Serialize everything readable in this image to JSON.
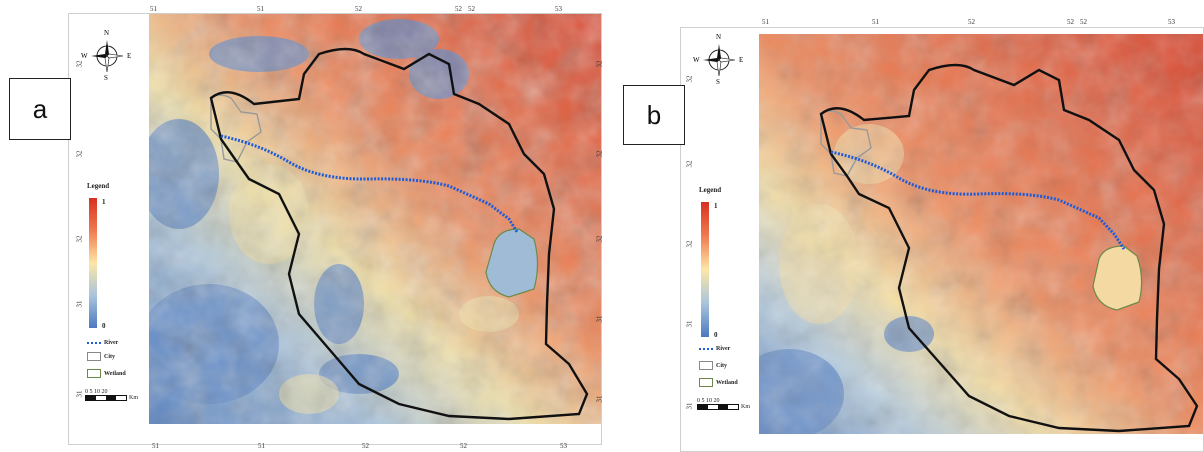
{
  "panels": [
    {
      "id": "a",
      "label": "a",
      "legend": {
        "title": "Legend",
        "max": "1",
        "min": "0",
        "river": "River",
        "city": "City",
        "wetland": "Wetland"
      },
      "scale": {
        "ticks": "0   5   10       20",
        "unit": "Km"
      },
      "compass": {
        "n": "N",
        "s": "S",
        "e": "E",
        "w": "W"
      },
      "top_ticks": [
        "51",
        "51",
        "52",
        "52",
        "52",
        "53"
      ],
      "bottom_ticks": [
        "51",
        "51",
        "52",
        "52",
        "53"
      ],
      "left_ticks": [
        "32",
        "32",
        "32",
        "31",
        "31"
      ],
      "right_ticks": [
        "32",
        "32",
        "32",
        "31",
        "31"
      ]
    },
    {
      "id": "b",
      "label": "b",
      "legend": {
        "title": "Legend",
        "max": "1",
        "min": "0",
        "river": "River",
        "city": "City",
        "wetland": "Wetland"
      },
      "scale": {
        "ticks": "0   5   10       20",
        "unit": "Km"
      },
      "compass": {
        "n": "N",
        "s": "S",
        "e": "E",
        "w": "W"
      },
      "top_ticks": [
        "51",
        "51",
        "52",
        "52",
        "52",
        "53"
      ],
      "bottom_ticks": [
        "51",
        "51",
        "52",
        "52",
        "53"
      ],
      "left_ticks": [
        "32",
        "32",
        "32",
        "31",
        "31"
      ],
      "right_ticks": [
        "32",
        "32",
        "32",
        "31",
        "31"
      ]
    }
  ],
  "colors": {
    "high": "#d7301f",
    "mid": "#fde6a6",
    "low": "#4b79bf",
    "river": "#1f5bd8",
    "boundary": "#111111"
  }
}
